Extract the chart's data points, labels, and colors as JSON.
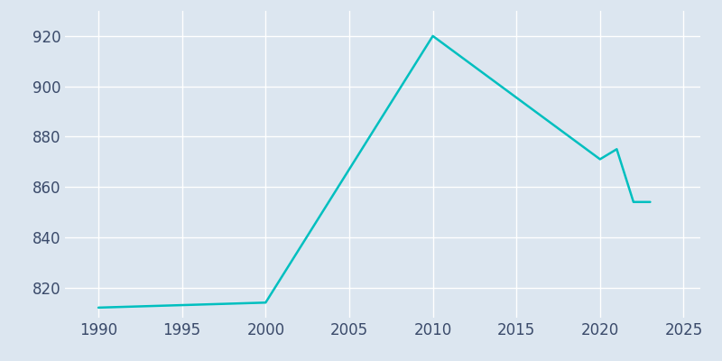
{
  "years": [
    1990,
    2000,
    2010,
    2020,
    2021,
    2022,
    2023
  ],
  "population": [
    812,
    814,
    920,
    871,
    875,
    854,
    854
  ],
  "line_color": "#00BFBF",
  "bg_color": "#dce6f0",
  "plot_bg_color": "#dce6f0",
  "grid_color": "#ffffff",
  "tick_color": "#3a4a6a",
  "xlim": [
    1988,
    2026
  ],
  "ylim": [
    808,
    930
  ],
  "xticks": [
    1990,
    1995,
    2000,
    2005,
    2010,
    2015,
    2020,
    2025
  ],
  "yticks": [
    820,
    840,
    860,
    880,
    900,
    920
  ],
  "tick_fontsize": 12
}
